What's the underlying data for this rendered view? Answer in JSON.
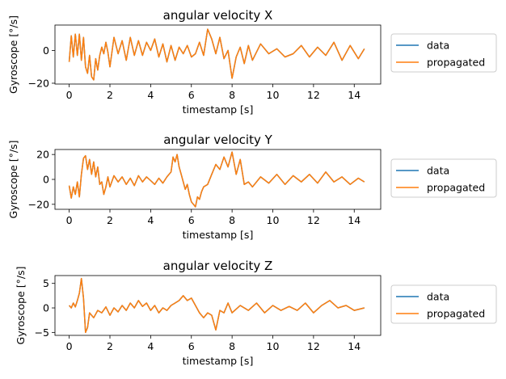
{
  "figure": {
    "series_colors": {
      "data": "#1f77b4",
      "propagated": "#ff7f0e"
    }
  },
  "chart_data": [
    {
      "type": "line",
      "title": "angular velocity X",
      "xlabel": "timestamp [s]",
      "ylabel": "Gyroscope [°/s]",
      "xlim": [
        -0.7,
        15.3
      ],
      "ylim": [
        -20.5,
        15.5
      ],
      "xticks": [
        0,
        2,
        4,
        6,
        8,
        10,
        12,
        14
      ],
      "yticks": [
        -20,
        0
      ],
      "legend": {
        "placement": "right-outside",
        "entries": [
          "data",
          "propagated"
        ]
      },
      "series": [
        {
          "name": "data",
          "x": [
            0,
            0.1,
            0.2,
            0.3,
            0.4,
            0.5,
            0.6,
            0.7,
            0.8,
            0.9,
            1.0,
            1.1,
            1.2,
            1.3,
            1.4,
            1.5,
            1.6,
            1.7,
            1.8,
            1.9,
            2.0,
            2.2,
            2.4,
            2.6,
            2.8,
            3.0,
            3.2,
            3.4,
            3.6,
            3.8,
            4.0,
            4.2,
            4.4,
            4.6,
            4.8,
            5.0,
            5.2,
            5.4,
            5.6,
            5.8,
            6.0,
            6.2,
            6.4,
            6.6,
            6.8,
            7.0,
            7.2,
            7.4,
            7.6,
            7.8,
            8.0,
            8.2,
            8.4,
            8.6,
            8.8,
            9.0,
            9.4,
            9.8,
            10.2,
            10.6,
            11.0,
            11.4,
            11.8,
            12.2,
            12.6,
            13.0,
            13.4,
            13.8,
            14.2,
            14.5
          ],
          "values": [
            -7,
            9,
            -4,
            10,
            -3,
            10,
            -6,
            8,
            -10,
            -14,
            -3,
            -16,
            -18,
            -5,
            -12,
            -3,
            2,
            -2,
            5,
            -1,
            -10,
            8,
            -2,
            6,
            -6,
            8,
            -3,
            6,
            -3,
            5,
            0,
            7,
            -4,
            4,
            -7,
            3,
            -6,
            2,
            -2,
            3,
            -4,
            -2,
            5,
            -3,
            13,
            7,
            -2,
            8,
            -5,
            0,
            -17,
            -4,
            2,
            -8,
            3,
            -6,
            4,
            -2,
            1,
            -4,
            -2,
            3,
            -4,
            2,
            -3,
            5,
            -6,
            3,
            -5,
            1
          ]
        },
        {
          "name": "propagated",
          "x": [
            0,
            0.1,
            0.2,
            0.3,
            0.4,
            0.5,
            0.6,
            0.7,
            0.8,
            0.9,
            1.0,
            1.1,
            1.2,
            1.3,
            1.4,
            1.5,
            1.6,
            1.7,
            1.8,
            1.9,
            2.0,
            2.2,
            2.4,
            2.6,
            2.8,
            3.0,
            3.2,
            3.4,
            3.6,
            3.8,
            4.0,
            4.2,
            4.4,
            4.6,
            4.8,
            5.0,
            5.2,
            5.4,
            5.6,
            5.8,
            6.0,
            6.2,
            6.4,
            6.6,
            6.8,
            7.0,
            7.2,
            7.4,
            7.6,
            7.8,
            8.0,
            8.2,
            8.4,
            8.6,
            8.8,
            9.0,
            9.4,
            9.8,
            10.2,
            10.6,
            11.0,
            11.4,
            11.8,
            12.2,
            12.6,
            13.0,
            13.4,
            13.8,
            14.2,
            14.5
          ],
          "values": [
            -7,
            9,
            -4,
            10,
            -3,
            10,
            -6,
            8,
            -10,
            -14,
            -3,
            -16,
            -18,
            -5,
            -12,
            -3,
            2,
            -2,
            5,
            -1,
            -10,
            8,
            -2,
            6,
            -6,
            8,
            -3,
            6,
            -3,
            5,
            0,
            7,
            -4,
            4,
            -7,
            3,
            -6,
            2,
            -2,
            3,
            -4,
            -2,
            5,
            -3,
            13,
            7,
            -2,
            8,
            -5,
            0,
            -17,
            -4,
            2,
            -8,
            3,
            -6,
            4,
            -2,
            1,
            -4,
            -2,
            3,
            -4,
            2,
            -3,
            5,
            -6,
            3,
            -5,
            1
          ]
        }
      ]
    },
    {
      "type": "line",
      "title": "angular velocity Y",
      "xlabel": "timestamp [s]",
      "ylabel": "Gyroscope [°/s]",
      "xlim": [
        -0.7,
        15.3
      ],
      "ylim": [
        -24,
        24
      ],
      "xticks": [
        0,
        2,
        4,
        6,
        8,
        10,
        12,
        14
      ],
      "yticks": [
        -20,
        0,
        20
      ],
      "legend": {
        "placement": "right-outside",
        "entries": [
          "data",
          "propagated"
        ]
      },
      "series": [
        {
          "name": "data",
          "x": [
            0,
            0.1,
            0.2,
            0.3,
            0.4,
            0.5,
            0.6,
            0.7,
            0.8,
            0.9,
            1.0,
            1.1,
            1.2,
            1.3,
            1.4,
            1.5,
            1.6,
            1.7,
            1.8,
            1.9,
            2.0,
            2.2,
            2.4,
            2.6,
            2.8,
            3.0,
            3.2,
            3.4,
            3.6,
            3.8,
            4.0,
            4.2,
            4.4,
            4.6,
            4.8,
            5.0,
            5.1,
            5.2,
            5.3,
            5.4,
            5.5,
            5.6,
            5.7,
            5.8,
            5.9,
            6.0,
            6.1,
            6.2,
            6.3,
            6.4,
            6.5,
            6.6,
            6.8,
            7.0,
            7.2,
            7.4,
            7.6,
            7.8,
            8.0,
            8.2,
            8.4,
            8.6,
            8.8,
            9.0,
            9.4,
            9.8,
            10.2,
            10.6,
            11.0,
            11.4,
            11.8,
            12.2,
            12.6,
            13.0,
            13.4,
            13.8,
            14.2,
            14.5
          ],
          "values": [
            -5,
            -15,
            -6,
            -12,
            -2,
            -14,
            4,
            17,
            19,
            8,
            16,
            4,
            14,
            2,
            10,
            -4,
            -2,
            -12,
            -6,
            2,
            -6,
            3,
            -2,
            2,
            -4,
            1,
            -5,
            3,
            -2,
            2,
            -1,
            -4,
            1,
            -3,
            2,
            6,
            18,
            14,
            20,
            10,
            4,
            -2,
            -8,
            -4,
            -12,
            -18,
            -20,
            -22,
            -14,
            -16,
            -10,
            -6,
            -4,
            4,
            12,
            8,
            18,
            10,
            22,
            4,
            16,
            -4,
            -2,
            -6,
            2,
            -3,
            4,
            -4,
            3,
            -2,
            4,
            -3,
            6,
            -2,
            2,
            -4,
            1,
            -2
          ]
        },
        {
          "name": "propagated",
          "x": [
            0,
            0.1,
            0.2,
            0.3,
            0.4,
            0.5,
            0.6,
            0.7,
            0.8,
            0.9,
            1.0,
            1.1,
            1.2,
            1.3,
            1.4,
            1.5,
            1.6,
            1.7,
            1.8,
            1.9,
            2.0,
            2.2,
            2.4,
            2.6,
            2.8,
            3.0,
            3.2,
            3.4,
            3.6,
            3.8,
            4.0,
            4.2,
            4.4,
            4.6,
            4.8,
            5.0,
            5.1,
            5.2,
            5.3,
            5.4,
            5.5,
            5.6,
            5.7,
            5.8,
            5.9,
            6.0,
            6.1,
            6.2,
            6.3,
            6.4,
            6.5,
            6.6,
            6.8,
            7.0,
            7.2,
            7.4,
            7.6,
            7.8,
            8.0,
            8.2,
            8.4,
            8.6,
            8.8,
            9.0,
            9.4,
            9.8,
            10.2,
            10.6,
            11.0,
            11.4,
            11.8,
            12.2,
            12.6,
            13.0,
            13.4,
            13.8,
            14.2,
            14.5
          ],
          "values": [
            -5,
            -15,
            -6,
            -12,
            -2,
            -14,
            4,
            17,
            19,
            8,
            16,
            4,
            14,
            2,
            10,
            -4,
            -2,
            -12,
            -6,
            2,
            -6,
            3,
            -2,
            2,
            -4,
            1,
            -5,
            3,
            -2,
            2,
            -1,
            -4,
            1,
            -3,
            2,
            6,
            18,
            14,
            20,
            10,
            4,
            -2,
            -8,
            -4,
            -12,
            -18,
            -20,
            -22,
            -14,
            -16,
            -10,
            -6,
            -4,
            4,
            12,
            8,
            18,
            10,
            22,
            4,
            16,
            -4,
            -2,
            -6,
            2,
            -3,
            4,
            -4,
            3,
            -2,
            4,
            -3,
            6,
            -2,
            2,
            -4,
            1,
            -2
          ]
        }
      ]
    },
    {
      "type": "line",
      "title": "angular velocity Z",
      "xlabel": "timestamp [s]",
      "ylabel": "Gyroscope [°/s]",
      "xlim": [
        -0.7,
        15.3
      ],
      "ylim": [
        -5.6,
        6.6
      ],
      "xticks": [
        0,
        2,
        4,
        6,
        8,
        10,
        12,
        14
      ],
      "yticks": [
        -5,
        0,
        5
      ],
      "legend": {
        "placement": "right-outside",
        "entries": [
          "data",
          "propagated"
        ]
      },
      "series": [
        {
          "name": "data",
          "x": [
            0,
            0.1,
            0.2,
            0.3,
            0.4,
            0.5,
            0.6,
            0.7,
            0.8,
            0.9,
            1.0,
            1.2,
            1.4,
            1.6,
            1.8,
            2.0,
            2.2,
            2.4,
            2.6,
            2.8,
            3.0,
            3.2,
            3.4,
            3.6,
            3.8,
            4.0,
            4.2,
            4.4,
            4.6,
            4.8,
            5.0,
            5.2,
            5.4,
            5.6,
            5.8,
            6.0,
            6.2,
            6.4,
            6.6,
            6.8,
            7.0,
            7.2,
            7.4,
            7.6,
            7.8,
            8.0,
            8.4,
            8.8,
            9.2,
            9.6,
            10.0,
            10.4,
            10.8,
            11.2,
            11.6,
            12.0,
            12.4,
            12.8,
            13.2,
            13.6,
            14.0,
            14.5
          ],
          "values": [
            0.5,
            0,
            1,
            0.2,
            1.5,
            3,
            6,
            2,
            -5,
            -4,
            -1,
            -2,
            -0.5,
            -1,
            0.2,
            -1.5,
            0,
            -0.8,
            0.5,
            -0.5,
            1,
            0,
            1.5,
            0.3,
            1,
            -0.5,
            0.5,
            -1,
            0,
            -0.5,
            0.5,
            1,
            1.5,
            2.5,
            1.5,
            2,
            0.5,
            -1,
            -2,
            -1,
            -1.5,
            -4.5,
            -0.5,
            -1,
            1,
            -1,
            0.5,
            -0.5,
            1,
            -1,
            0.5,
            -0.5,
            0.3,
            -0.5,
            1,
            -1,
            0.5,
            1.5,
            0,
            0.5,
            -0.5,
            0
          ]
        },
        {
          "name": "propagated",
          "x": [
            0,
            0.1,
            0.2,
            0.3,
            0.4,
            0.5,
            0.6,
            0.7,
            0.8,
            0.9,
            1.0,
            1.2,
            1.4,
            1.6,
            1.8,
            2.0,
            2.2,
            2.4,
            2.6,
            2.8,
            3.0,
            3.2,
            3.4,
            3.6,
            3.8,
            4.0,
            4.2,
            4.4,
            4.6,
            4.8,
            5.0,
            5.2,
            5.4,
            5.6,
            5.8,
            6.0,
            6.2,
            6.4,
            6.6,
            6.8,
            7.0,
            7.2,
            7.4,
            7.6,
            7.8,
            8.0,
            8.4,
            8.8,
            9.2,
            9.6,
            10.0,
            10.4,
            10.8,
            11.2,
            11.6,
            12.0,
            12.4,
            12.8,
            13.2,
            13.6,
            14.0,
            14.5
          ],
          "values": [
            0.5,
            0,
            1,
            0.2,
            1.5,
            3,
            6,
            2,
            -5,
            -4,
            -1,
            -2,
            -0.5,
            -1,
            0.2,
            -1.5,
            0,
            -0.8,
            0.5,
            -0.5,
            1,
            0,
            1.5,
            0.3,
            1,
            -0.5,
            0.5,
            -1,
            0,
            -0.5,
            0.5,
            1,
            1.5,
            2.5,
            1.5,
            2,
            0.5,
            -1,
            -2,
            -1,
            -1.5,
            -4.5,
            -0.5,
            -1,
            1,
            -1,
            0.5,
            -0.5,
            1,
            -1,
            0.5,
            -0.5,
            0.3,
            -0.5,
            1,
            -1,
            0.5,
            1.5,
            0,
            0.5,
            -0.5,
            0
          ]
        }
      ]
    }
  ]
}
